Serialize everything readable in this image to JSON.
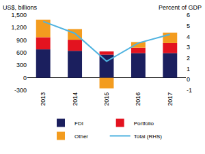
{
  "chart_data": {
    "type": "bar",
    "stacked": true,
    "grid": false,
    "legend": "bottom",
    "y_label": "US$, billions",
    "y2_label": "Percent of GDP",
    "categories": [
      "2013",
      "2014",
      "2015",
      "2016",
      "2017"
    ],
    "series": [
      {
        "name": "FDI",
        "color": "#1b1f5e",
        "values": [
          680,
          645,
          555,
          590,
          590
        ]
      },
      {
        "name": "Portfolio",
        "color": "#e3131f",
        "values": [
          290,
          265,
          75,
          130,
          240
        ]
      },
      {
        "name": "Other",
        "color": "#f39c1f",
        "values": [
          420,
          255,
          -255,
          135,
          250
        ]
      },
      {
        "name": "Total (RHS)",
        "type": "line",
        "axis": "y2",
        "color": "#4fb3e0",
        "values": [
          5.4,
          4.3,
          1.7,
          3.4,
          4.2
        ]
      }
    ],
    "ylim": [
      -300,
      1500
    ],
    "yticks": [
      -300,
      0,
      300,
      600,
      900,
      {
        "value": 1200,
        "label": "1,200"
      },
      {
        "value": 1500,
        "label": "1,500"
      }
    ],
    "y2lim": [
      -1,
      6
    ],
    "y2ticks": [
      -1,
      0,
      1,
      2,
      3,
      4,
      5,
      6
    ]
  }
}
